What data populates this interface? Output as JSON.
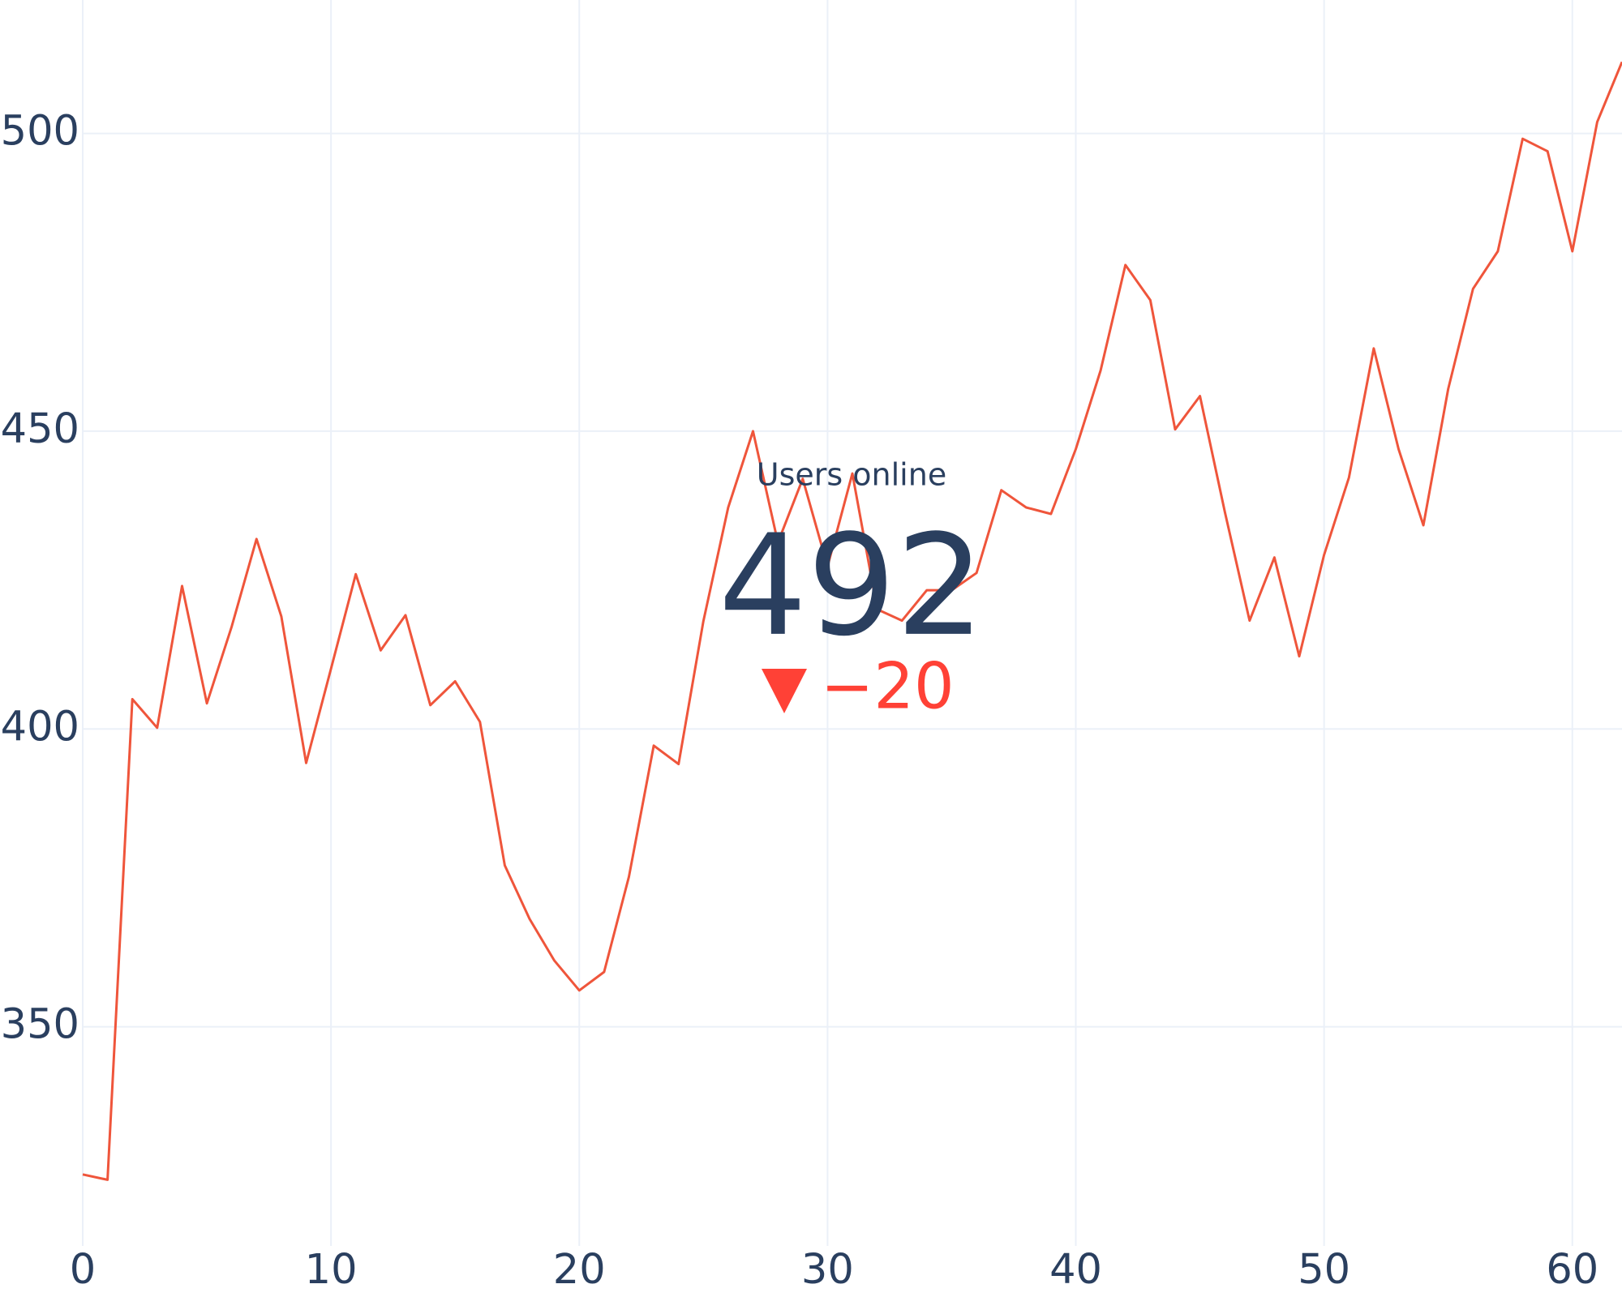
{
  "chart_data": {
    "type": "line",
    "x": [
      0,
      1,
      2,
      3,
      4,
      5,
      6,
      7,
      8,
      9,
      10,
      11,
      12,
      13,
      14,
      15,
      16,
      17,
      18,
      19,
      20,
      21,
      22,
      23,
      24,
      25,
      26,
      27,
      28,
      29,
      30,
      31,
      32,
      33,
      34,
      35,
      36,
      37,
      38,
      39,
      40,
      41,
      42,
      43,
      44,
      45,
      46,
      47,
      48,
      49,
      50,
      51,
      52,
      53,
      54,
      55,
      56,
      57,
      58,
      59,
      60,
      61,
      62
    ],
    "series": [
      {
        "name": "Users online",
        "color": "#ef553b",
        "values": [
          325.2,
          324.3,
          405,
          400.2,
          424,
          404.3,
          417.2,
          431.9,
          418.9,
          394.3,
          410.1,
          426,
          413.2,
          419.1,
          404,
          408,
          401.2,
          377.1,
          368.1,
          361.1,
          356.1,
          359.2,
          375.2,
          397.2,
          394.1,
          418.1,
          437.2,
          450,
          431.3,
          442,
          427.3,
          442.9,
          420.1,
          418.2,
          423.3,
          423.3,
          426.2,
          440.1,
          437.2,
          436.1,
          447,
          460.2,
          477.9,
          472,
          450.3,
          455.9,
          436.5,
          418.2,
          428.8,
          412.2,
          429.2,
          442.2,
          463.9,
          447,
          434.2,
          457.1,
          473.9,
          480.2,
          499.1,
          497,
          480.2,
          501.9,
          512
        ]
      }
    ],
    "xlim": [
      0,
      62
    ],
    "ylim": [
      313.2,
      522.4
    ],
    "xticks": [
      0,
      10,
      20,
      30,
      40,
      50,
      60
    ],
    "yticks": [
      350,
      400,
      450,
      500
    ],
    "grid": true,
    "indicator": {
      "title": "Users online",
      "value": 492,
      "delta": {
        "value": -20,
        "label": "−20"
      },
      "delta_color": "#ff4136"
    }
  }
}
